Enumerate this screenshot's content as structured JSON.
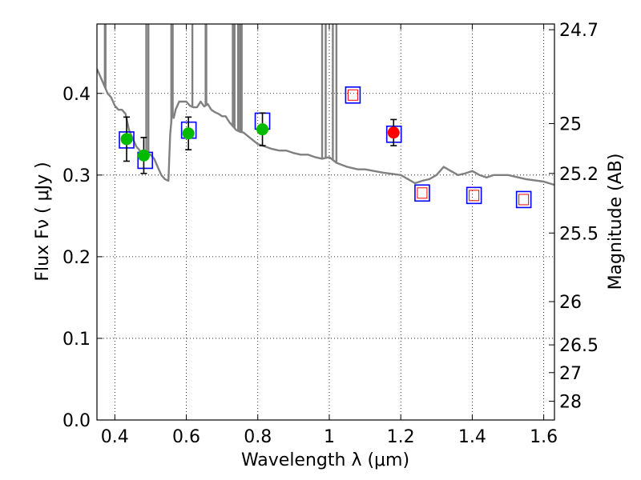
{
  "chart_data": {
    "type": "scatter",
    "title": "",
    "xlabel": "Wavelength  λ (μm)",
    "ylabel": "Flux  Fν  ( μJy )",
    "ylabel_right": "Magnitude (AB)",
    "xlim": [
      0.35,
      1.63
    ],
    "ylim": [
      0.0,
      0.485
    ],
    "grid": true,
    "x_ticks": [
      0.4,
      0.6,
      0.8,
      1.0,
      1.2,
      1.4,
      1.6
    ],
    "x_tick_labels": [
      "0.4",
      "0.6",
      "0.8",
      "1",
      "1.2",
      "1.4",
      "1.6"
    ],
    "y_ticks": [
      0.0,
      0.1,
      0.2,
      0.3,
      0.4
    ],
    "y_tick_labels": [
      "0.0",
      "0.1",
      "0.2",
      "0.3",
      "0.4"
    ],
    "right_ticks": [
      {
        "label": "24.7",
        "flux": 0.478
      },
      {
        "label": "25",
        "flux": 0.363
      },
      {
        "label": "25.2",
        "flux": 0.302
      },
      {
        "label": "25.5",
        "flux": 0.229
      },
      {
        "label": "26",
        "flux": 0.145
      },
      {
        "label": "26.5",
        "flux": 0.092
      },
      {
        "label": "27",
        "flux": 0.058
      },
      {
        "label": "28",
        "flux": 0.023
      }
    ],
    "colors": {
      "model": "#808080",
      "box": "#0000ff",
      "inner_box": "#ff0000",
      "green_point": "#00bb00",
      "red_point": "#ff0000",
      "errorbar": "#000000",
      "grid": "#000000"
    },
    "series": [
      {
        "name": "model spectrum",
        "kind": "line",
        "x": [
          0.35,
          0.36,
          0.37,
          0.38,
          0.39,
          0.4,
          0.41,
          0.42,
          0.43,
          0.44,
          0.45,
          0.46,
          0.47,
          0.48,
          0.49,
          0.5,
          0.51,
          0.52,
          0.53,
          0.54,
          0.55,
          0.555,
          0.56,
          0.565,
          0.57,
          0.58,
          0.59,
          0.6,
          0.61,
          0.62,
          0.63,
          0.64,
          0.65,
          0.66,
          0.67,
          0.68,
          0.69,
          0.7,
          0.71,
          0.72,
          0.73,
          0.74,
          0.75,
          0.76,
          0.78,
          0.8,
          0.82,
          0.84,
          0.86,
          0.88,
          0.9,
          0.92,
          0.94,
          0.96,
          0.98,
          1.0,
          1.02,
          1.05,
          1.08,
          1.1,
          1.15,
          1.2,
          1.24,
          1.26,
          1.28,
          1.3,
          1.32,
          1.34,
          1.36,
          1.38,
          1.4,
          1.42,
          1.44,
          1.46,
          1.5,
          1.55,
          1.6,
          1.63
        ],
        "y": [
          0.43,
          0.42,
          0.41,
          0.4,
          0.395,
          0.385,
          0.38,
          0.38,
          0.375,
          0.355,
          0.345,
          0.335,
          0.33,
          0.325,
          0.325,
          0.325,
          0.32,
          0.31,
          0.3,
          0.295,
          0.293,
          0.35,
          0.375,
          0.37,
          0.38,
          0.39,
          0.39,
          0.39,
          0.385,
          0.383,
          0.383,
          0.39,
          0.384,
          0.387,
          0.38,
          0.377,
          0.375,
          0.372,
          0.372,
          0.365,
          0.36,
          0.355,
          0.353,
          0.352,
          0.345,
          0.338,
          0.335,
          0.332,
          0.33,
          0.33,
          0.327,
          0.325,
          0.325,
          0.322,
          0.32,
          0.322,
          0.315,
          0.31,
          0.307,
          0.307,
          0.303,
          0.3,
          0.29,
          0.293,
          0.295,
          0.3,
          0.31,
          0.305,
          0.3,
          0.302,
          0.305,
          0.3,
          0.297,
          0.3,
          0.3,
          0.295,
          0.292,
          0.288
        ]
      },
      {
        "name": "emission spikes",
        "kind": "spikes",
        "x": [
          0.372,
          0.374,
          0.488,
          0.494,
          0.558,
          0.562,
          0.617,
          0.654,
          0.656,
          0.73,
          0.735,
          0.745,
          0.75,
          0.755,
          0.98,
          0.99,
          1.01,
          1.02
        ],
        "y_top": [
          0.485,
          0.485,
          0.485,
          0.485,
          0.485,
          0.485,
          0.485,
          0.485,
          0.485,
          0.485,
          0.485,
          0.485,
          0.485,
          0.485,
          0.485,
          0.485,
          0.485,
          0.485
        ]
      },
      {
        "name": "model band flux (blue squares)",
        "kind": "box",
        "x": [
          0.433,
          0.485,
          0.607,
          0.813,
          1.066,
          1.181,
          1.26,
          1.405,
          1.544
        ],
        "y": [
          0.343,
          0.318,
          0.355,
          0.366,
          0.398,
          0.35,
          0.278,
          0.275,
          0.27
        ]
      },
      {
        "name": "upper limits (red small squares)",
        "kind": "inner_box",
        "x": [
          1.066,
          1.26,
          1.405,
          1.544
        ],
        "y": [
          0.398,
          0.278,
          0.275,
          0.27
        ]
      },
      {
        "name": "observed (green)",
        "kind": "point",
        "x": [
          0.433,
          0.481,
          0.606,
          0.813
        ],
        "y": [
          0.344,
          0.324,
          0.351,
          0.356
        ],
        "err": [
          0.027,
          0.022,
          0.02,
          0.02
        ]
      },
      {
        "name": "observed (red)",
        "kind": "point",
        "x": [
          1.18
        ],
        "y": [
          0.352
        ],
        "err": [
          0.016
        ]
      }
    ]
  }
}
